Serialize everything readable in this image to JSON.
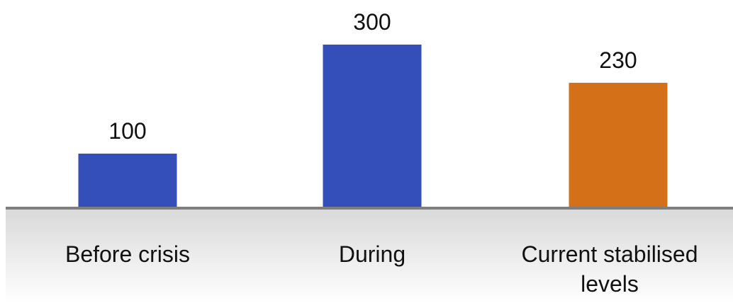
{
  "chart_data": {
    "type": "bar",
    "categories": [
      "Before crisis",
      "During",
      "Current stabilised levels"
    ],
    "category_lines": [
      [
        "Before crisis"
      ],
      [
        "During"
      ],
      [
        "Current stabilised",
        "levels"
      ]
    ],
    "values": [
      100,
      300,
      230
    ],
    "data_labels": [
      "100",
      "300",
      "230"
    ],
    "colors": [
      "#354fba",
      "#354fba",
      "#d47018"
    ],
    "axis_color": "#7f7f7f",
    "ylim": [
      0,
      300
    ],
    "title": "",
    "xlabel": "",
    "ylabel": "",
    "grid": false,
    "legend": "none"
  }
}
